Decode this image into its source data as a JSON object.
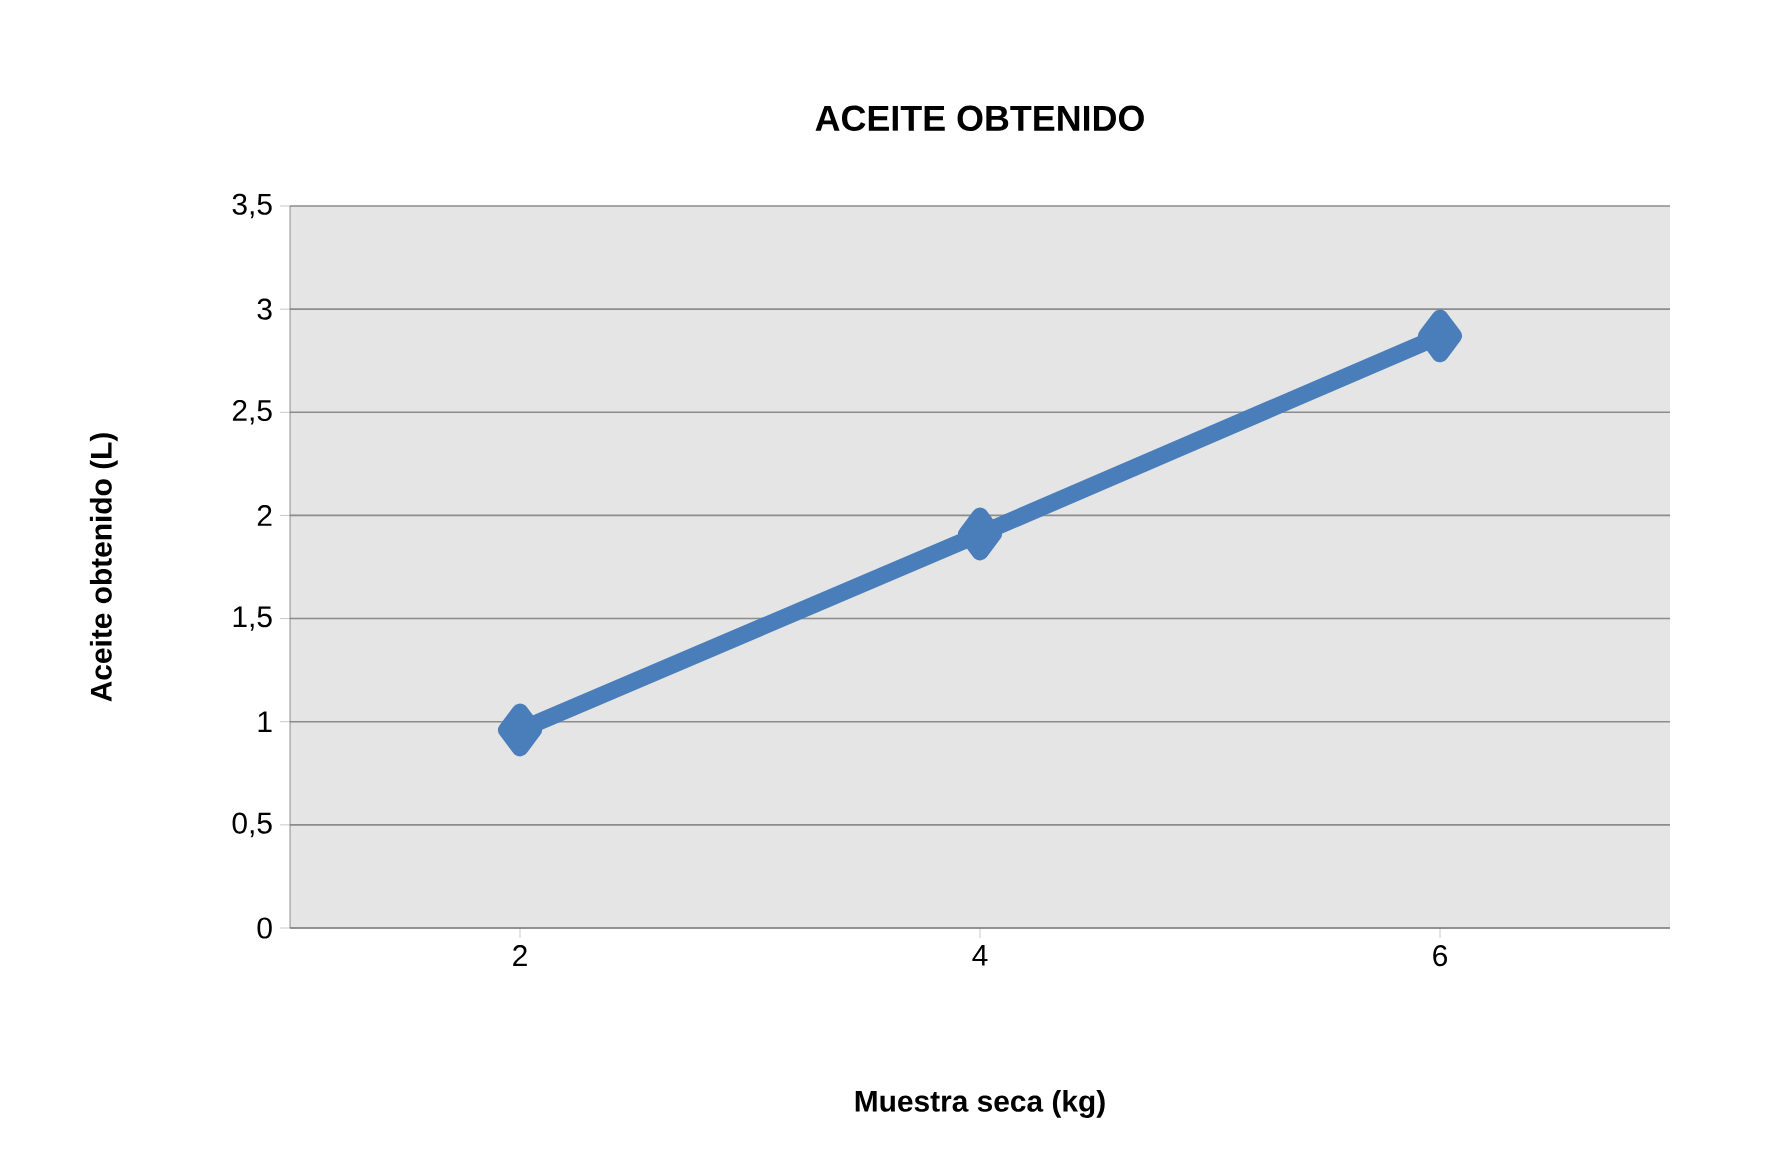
{
  "chart_data": {
    "type": "line",
    "title": "ACEITE OBTENIDO",
    "xlabel": "Muestra seca (kg)",
    "ylabel": "Aceite obtenido (L)",
    "categories": [
      "2",
      "4",
      "6"
    ],
    "series": [
      {
        "color": "#4a7ebb",
        "values": [
          0.96,
          1.91,
          2.87
        ]
      }
    ],
    "ylim": [
      0,
      3.5
    ],
    "yticks": [
      0,
      {
        "value": 0.5,
        "label": "0,5"
      },
      1,
      {
        "value": 1.5,
        "label": "1,5"
      },
      2,
      {
        "value": 2.5,
        "label": "2,5"
      },
      3,
      {
        "value": 3.5,
        "label": "3,5"
      }
    ],
    "grid": "y",
    "marker": "diamond",
    "line_style": "solid"
  }
}
